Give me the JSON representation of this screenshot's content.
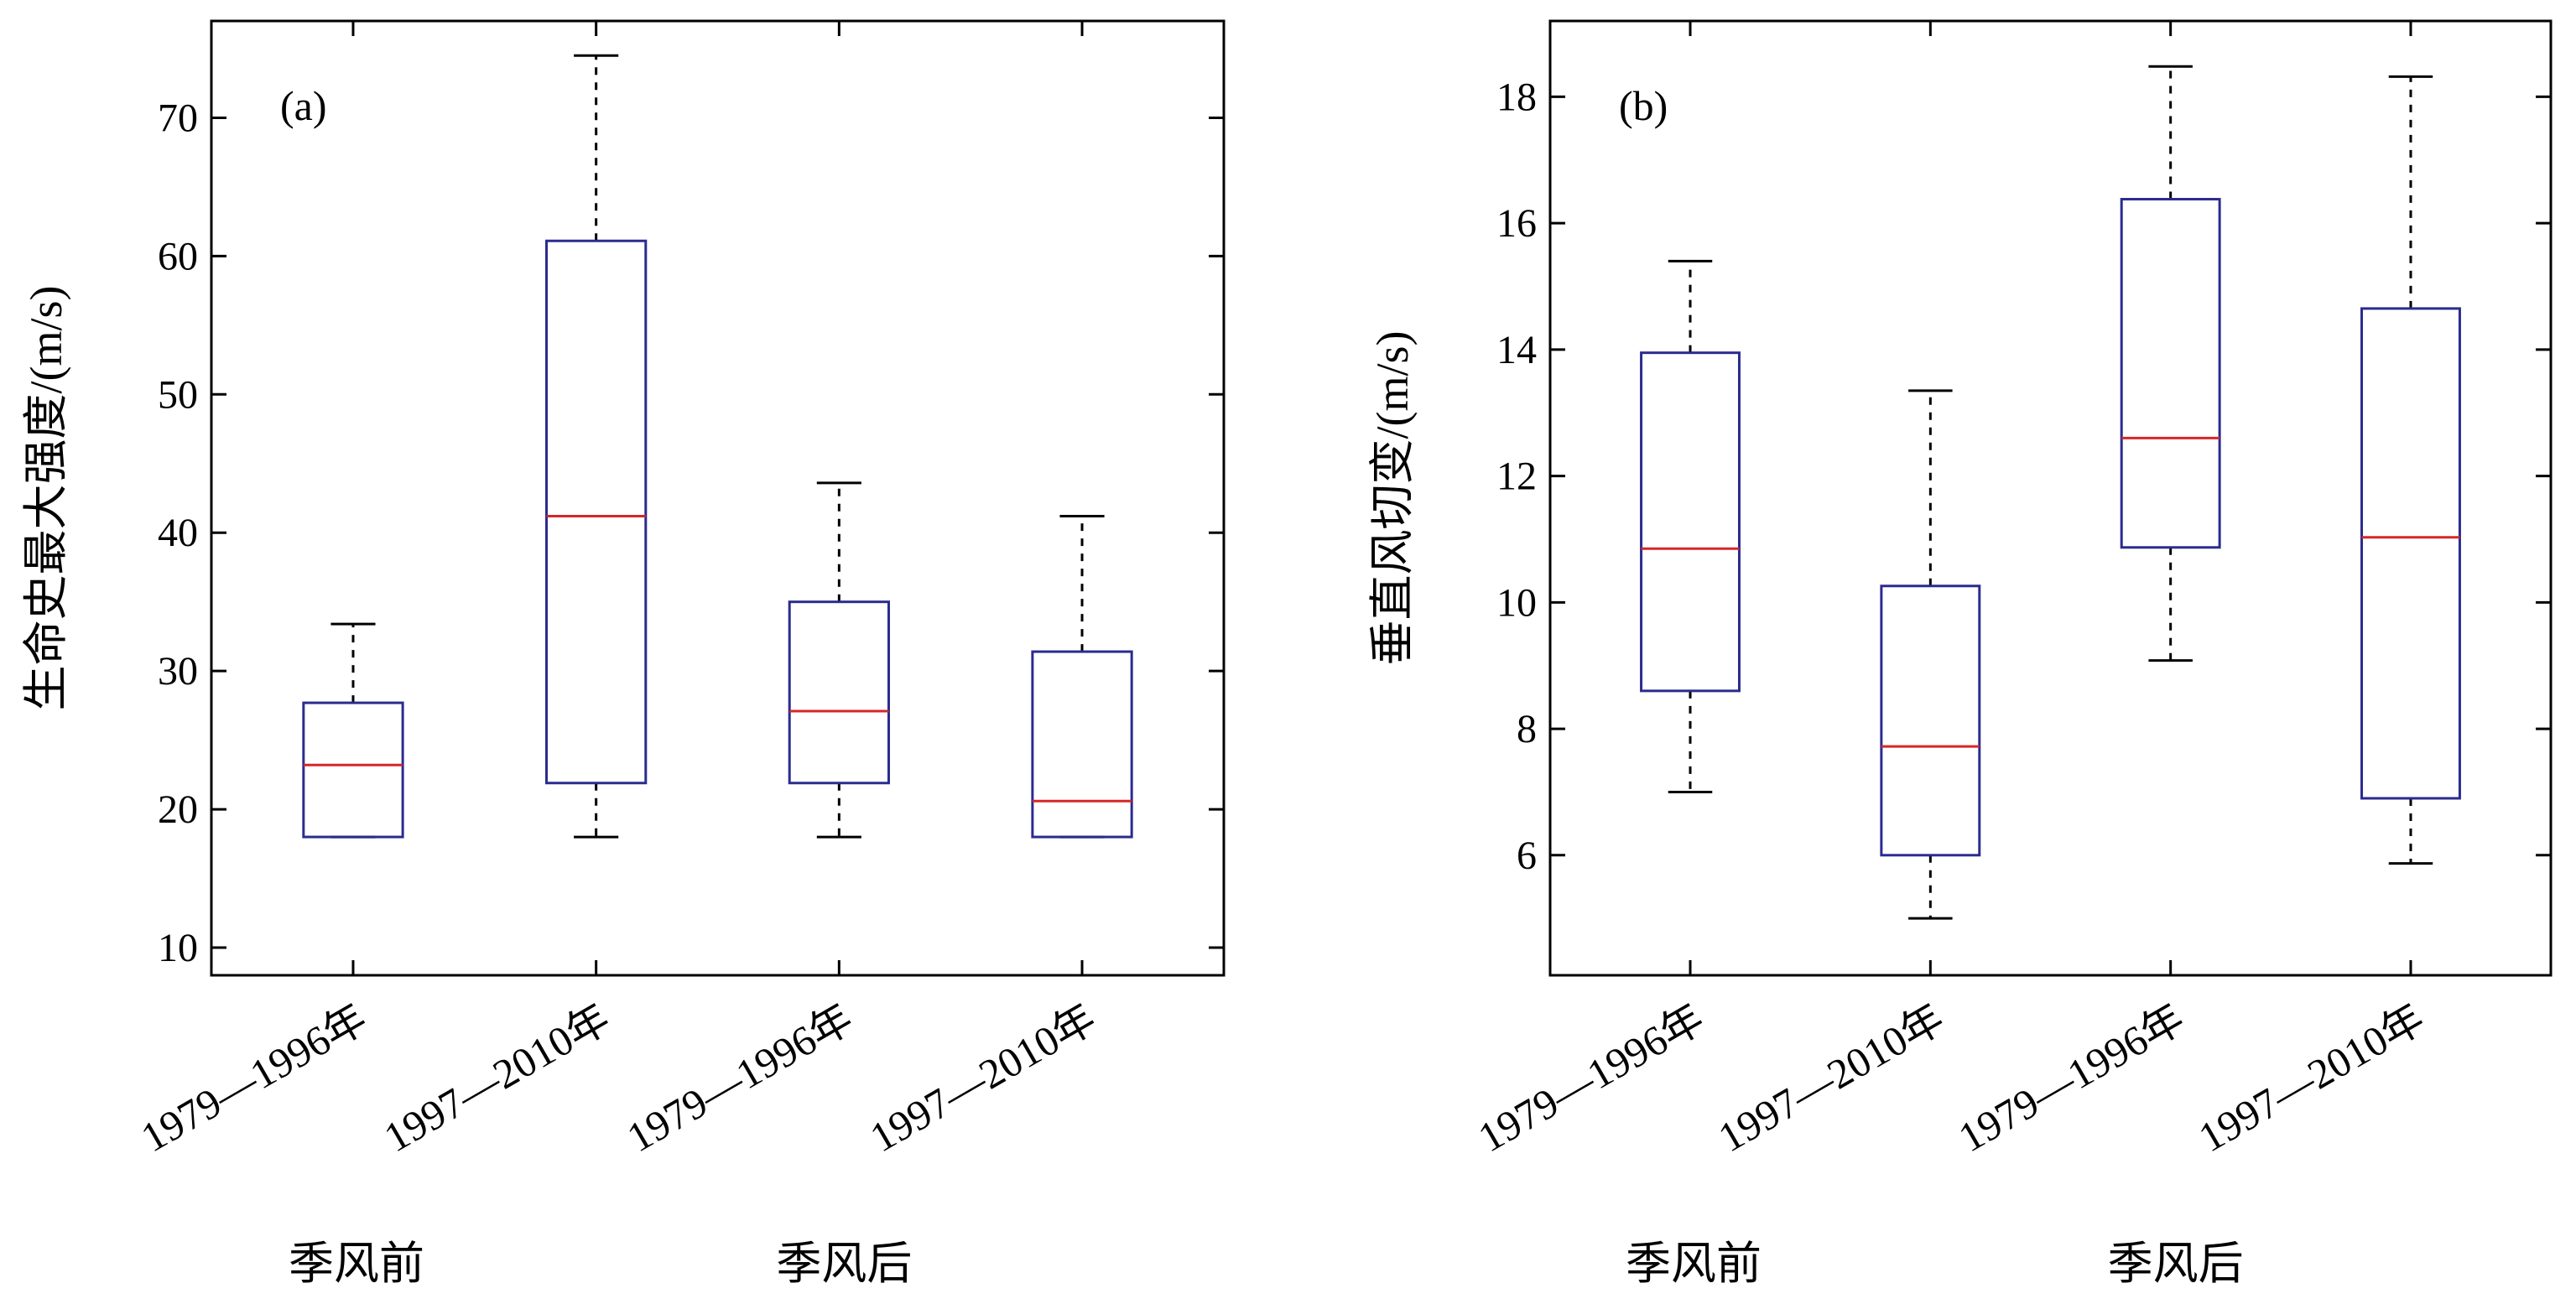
{
  "colors": {
    "box": "#2b2b8f",
    "median": "#d62728",
    "whisker": "#000000",
    "axis": "#000000"
  },
  "chart_data": [
    {
      "type": "box",
      "panel_label": "(a)",
      "ylabel": "生命史最大强度/(m/s)",
      "ylim": [
        8,
        77
      ],
      "yticks": [
        10,
        20,
        30,
        40,
        50,
        60,
        70
      ],
      "categories": [
        "1979—1996年",
        "1997—2010年",
        "1979—1996年",
        "1997—2010年"
      ],
      "groups": [
        {
          "label": "季风前",
          "categories": [
            0,
            1
          ]
        },
        {
          "label": "季风后",
          "categories": [
            2,
            3
          ]
        }
      ],
      "boxes": [
        {
          "whisker_low": 18,
          "q1": 18,
          "median": 23.2,
          "q3": 27.7,
          "whisker_high": 33.4
        },
        {
          "whisker_low": 18,
          "q1": 21.9,
          "median": 41.2,
          "q3": 61.1,
          "whisker_high": 74.5
        },
        {
          "whisker_low": 18,
          "q1": 21.9,
          "median": 27.1,
          "q3": 35.0,
          "whisker_high": 43.6
        },
        {
          "whisker_low": 18,
          "q1": 18,
          "median": 20.6,
          "q3": 31.4,
          "whisker_high": 41.2
        }
      ]
    },
    {
      "type": "box",
      "panel_label": "(b)",
      "ylabel": "垂直风切变/(m/s)",
      "ylim": [
        4.1,
        19.2
      ],
      "yticks": [
        6,
        8,
        10,
        12,
        14,
        16,
        18
      ],
      "categories": [
        "1979—1996年",
        "1997—2010年",
        "1979—1996年",
        "1997—2010年"
      ],
      "groups": [
        {
          "label": "季风前",
          "categories": [
            0,
            1
          ]
        },
        {
          "label": "季风后",
          "categories": [
            2,
            3
          ]
        }
      ],
      "boxes": [
        {
          "whisker_low": 7.0,
          "q1": 8.6,
          "median": 10.85,
          "q3": 13.95,
          "whisker_high": 15.4
        },
        {
          "whisker_low": 5.0,
          "q1": 6.0,
          "median": 7.72,
          "q3": 10.26,
          "whisker_high": 13.35
        },
        {
          "whisker_low": 9.08,
          "q1": 10.87,
          "median": 12.6,
          "q3": 16.38,
          "whisker_high": 18.48
        },
        {
          "whisker_low": 5.87,
          "q1": 6.9,
          "median": 11.03,
          "q3": 14.65,
          "whisker_high": 18.32
        }
      ]
    }
  ]
}
